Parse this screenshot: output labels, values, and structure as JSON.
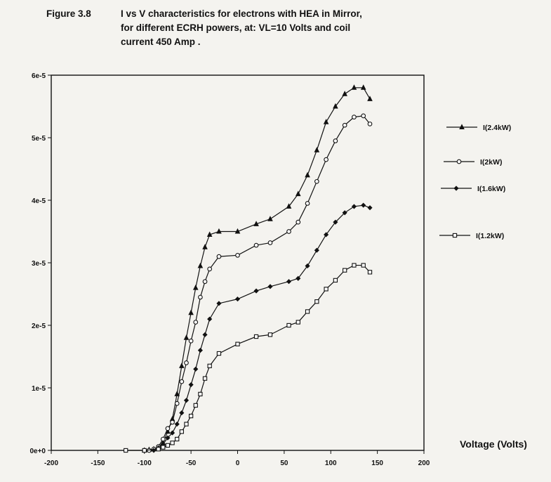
{
  "caption": {
    "number": "Figure 3.8",
    "lines": [
      "I vs  V characteristics for electrons with HEA in Mirror,",
      "for different ECRH powers, at: VL=10 Volts  and coil",
      "current 450 Amp ."
    ]
  },
  "chart_data": {
    "type": "line",
    "title": "",
    "xlabel": "Voltage (Volts)",
    "ylabel": "",
    "xlim": [
      -200,
      200
    ],
    "ylim": [
      0,
      6e-05
    ],
    "x_ticks": [
      "-200",
      "-150",
      "-100",
      "-50",
      "0",
      "50",
      "100",
      "150",
      "200"
    ],
    "y_ticks": [
      "0e+0",
      "1e-5",
      "2e-5",
      "3e-5",
      "4e-5",
      "5e-5",
      "6e-5"
    ],
    "grid": false,
    "legend_position": "right",
    "series": [
      {
        "name": "I(2.4kW)",
        "marker": "open-triangle",
        "x": [
          -100,
          -95,
          -90,
          -85,
          -80,
          -75,
          -70,
          -65,
          -60,
          -55,
          -50,
          -45,
          -40,
          -35,
          -30,
          -20,
          0,
          20,
          35,
          55,
          65,
          75,
          85,
          95,
          105,
          115,
          125,
          135,
          142
        ],
        "y": [
          0,
          1e-07,
          2e-07,
          5e-07,
          1.2e-06,
          3e-06,
          5e-06,
          9e-06,
          1.35e-05,
          1.8e-05,
          2.2e-05,
          2.6e-05,
          2.95e-05,
          3.25e-05,
          3.45e-05,
          3.5e-05,
          3.5e-05,
          3.62e-05,
          3.7e-05,
          3.9e-05,
          4.1e-05,
          4.4e-05,
          4.8e-05,
          5.25e-05,
          5.5e-05,
          5.7e-05,
          5.8e-05,
          5.8e-05,
          5.62e-05
        ]
      },
      {
        "name": "I(2kW)",
        "marker": "open-circle",
        "x": [
          -95,
          -90,
          -85,
          -80,
          -75,
          -70,
          -65,
          -60,
          -55,
          -50,
          -45,
          -40,
          -35,
          -30,
          -20,
          0,
          20,
          35,
          55,
          65,
          75,
          85,
          95,
          105,
          115,
          125,
          135,
          142
        ],
        "y": [
          0,
          2e-07,
          6e-07,
          1.8e-06,
          3.5e-06,
          4.5e-06,
          7.5e-06,
          1.1e-05,
          1.4e-05,
          1.75e-05,
          2.05e-05,
          2.45e-05,
          2.7e-05,
          2.9e-05,
          3.1e-05,
          3.12e-05,
          3.28e-05,
          3.32e-05,
          3.5e-05,
          3.65e-05,
          3.95e-05,
          4.3e-05,
          4.65e-05,
          4.95e-05,
          5.2e-05,
          5.33e-05,
          5.35e-05,
          5.22e-05
        ]
      },
      {
        "name": "I(1.6kW)",
        "marker": "filled-diamond",
        "x": [
          -90,
          -85,
          -80,
          -75,
          -70,
          -65,
          -60,
          -55,
          -50,
          -45,
          -40,
          -35,
          -30,
          -20,
          0,
          20,
          35,
          55,
          65,
          75,
          85,
          95,
          105,
          115,
          125,
          135,
          142
        ],
        "y": [
          0,
          4e-07,
          1e-06,
          2e-06,
          2.8e-06,
          4.2e-06,
          6e-06,
          8e-06,
          1.05e-05,
          1.3e-05,
          1.6e-05,
          1.85e-05,
          2.1e-05,
          2.35e-05,
          2.42e-05,
          2.55e-05,
          2.62e-05,
          2.7e-05,
          2.75e-05,
          2.95e-05,
          3.2e-05,
          3.45e-05,
          3.65e-05,
          3.8e-05,
          3.9e-05,
          3.92e-05,
          3.88e-05
        ]
      },
      {
        "name": "I(1.2kW)",
        "marker": "open-square",
        "x": [
          -120,
          -100,
          -85,
          -80,
          -75,
          -70,
          -65,
          -60,
          -55,
          -50,
          -45,
          -40,
          -35,
          -30,
          -20,
          0,
          20,
          35,
          55,
          65,
          75,
          85,
          95,
          105,
          115,
          125,
          135,
          142
        ],
        "y": [
          0,
          0,
          2e-07,
          5e-07,
          8e-07,
          1.2e-06,
          1.8e-06,
          3e-06,
          4.2e-06,
          5.5e-06,
          7.2e-06,
          9e-06,
          1.15e-05,
          1.35e-05,
          1.55e-05,
          1.7e-05,
          1.82e-05,
          1.85e-05,
          2e-05,
          2.05e-05,
          2.22e-05,
          2.38e-05,
          2.58e-05,
          2.72e-05,
          2.88e-05,
          2.96e-05,
          2.96e-05,
          2.85e-05
        ]
      }
    ]
  },
  "colors": {
    "ink": "#111111",
    "paper": "#f4f3ef"
  }
}
